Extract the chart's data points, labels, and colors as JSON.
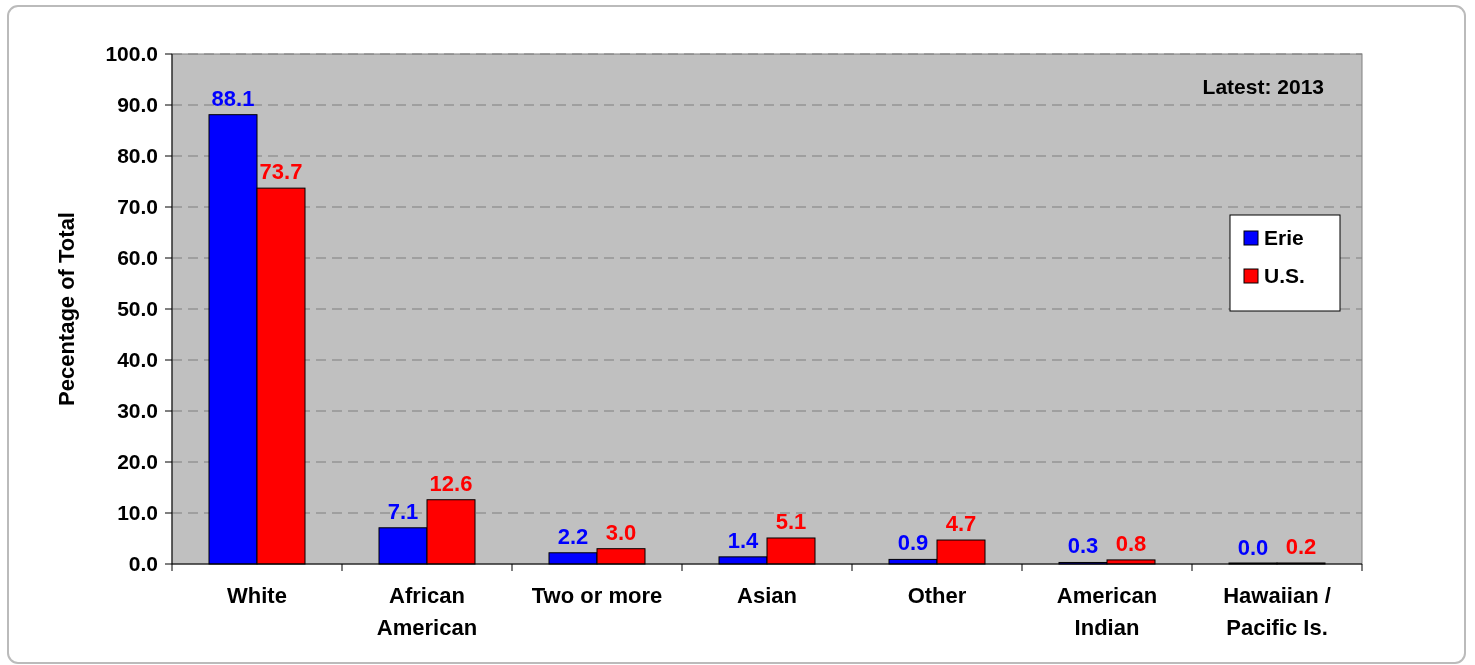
{
  "chart_data": {
    "type": "bar",
    "ylabel": "Pecentage of Total",
    "annotations": [
      "Latest: 2013"
    ],
    "categories": [
      "White",
      "African American",
      "Two or more",
      "Asian",
      "Other",
      "American Indian",
      "Hawaiian / Pacific Is."
    ],
    "series": [
      {
        "name": "Erie",
        "color": "#0000ff",
        "values": [
          88.1,
          7.1,
          2.2,
          1.4,
          0.9,
          0.3,
          0.0
        ],
        "value_labels": [
          "88.1",
          "7.1",
          "2.2",
          "1.4",
          "0.9",
          "0.3",
          "0.0"
        ]
      },
      {
        "name": "U.S.",
        "color": "#ff0000",
        "values": [
          73.7,
          12.6,
          3.0,
          5.1,
          4.7,
          0.8,
          0.2
        ],
        "value_labels": [
          "73.7",
          "12.6",
          "3.0",
          "5.1",
          "4.7",
          "0.8",
          "0.2"
        ]
      }
    ],
    "ylim": [
      0,
      100
    ],
    "yticks": [
      {
        "value": 0,
        "label": "0.0"
      },
      {
        "value": 10,
        "label": "10.0"
      },
      {
        "value": 20,
        "label": "20.0"
      },
      {
        "value": 30,
        "label": "30.0"
      },
      {
        "value": 40,
        "label": "40.0"
      },
      {
        "value": 50,
        "label": "50.0"
      },
      {
        "value": 60,
        "label": "60.0"
      },
      {
        "value": 70,
        "label": "70.0"
      },
      {
        "value": 80,
        "label": "80.0"
      },
      {
        "value": 90,
        "label": "90.0"
      },
      {
        "value": 100,
        "label": "100.0"
      }
    ],
    "grid": "y",
    "legend": "right"
  }
}
